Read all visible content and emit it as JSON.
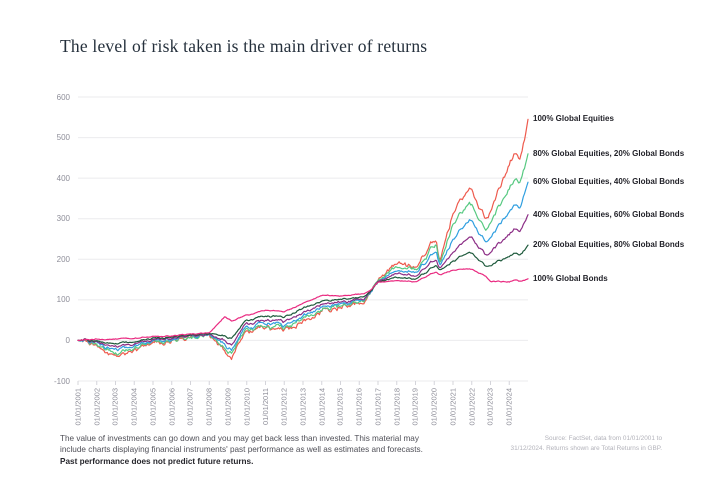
{
  "title": "The level of risk taken is the main driver of returns",
  "footer": {
    "lines": [
      "The value of investments can go down and you may get back less than invested. This material may",
      "include charts displaying financial instruments' past performance as well as estimates and forecasts."
    ],
    "bold_line": "Past performance does not predict future returns."
  },
  "source": {
    "lines": [
      "Source: FactSet, data from 01/01/2001 to",
      "31/12/2024. Returns shown are Total Returns in GBP."
    ]
  },
  "chart_data": {
    "type": "line",
    "grid": "horizontal",
    "legend_position": "right-of-line-end",
    "ylim": [
      -100,
      600
    ],
    "y_ticks": [
      600,
      500,
      400,
      300,
      200,
      100,
      0,
      -100
    ],
    "xlim_years": [
      2001,
      2025
    ],
    "x_tick_labels": [
      "01/01/2001",
      "01/01/2002",
      "01/01/2003",
      "01/01/2004",
      "01/01/2005",
      "01/01/2006",
      "01/01/2007",
      "01/01/2008",
      "01/01/2009",
      "01/01/2010",
      "01/01/2011",
      "01/01/2012",
      "01/01/2013",
      "01/01/2014",
      "01/01/2015",
      "01/01/2016",
      "01/01/2017",
      "01/01/2018",
      "01/01/2019",
      "01/01/2020",
      "01/01/2021",
      "01/01/2022",
      "01/01/2023",
      "01/01/2024"
    ],
    "x_anchor_years": [
      2001,
      2002,
      2003.2,
      2004,
      2005,
      2006,
      2007,
      2008,
      2008.85,
      2009.2,
      2010,
      2011,
      2012,
      2013,
      2014,
      2015,
      2016.2,
      2016.6,
      2017,
      2018,
      2019,
      2020.1,
      2020.3,
      2021,
      2021.9,
      2022.75,
      2023,
      2024,
      2024.35,
      2024.55,
      2025
    ],
    "series": [
      {
        "name": "100% Global Equities",
        "color": "#ee5a4d",
        "values": [
          0,
          -12,
          -42,
          -18,
          -8,
          2,
          12,
          15,
          -25,
          -42,
          22,
          32,
          22,
          50,
          75,
          85,
          88,
          110,
          150,
          195,
          185,
          255,
          195,
          315,
          385,
          300,
          320,
          430,
          470,
          445,
          545
        ]
      },
      {
        "name": "80% Global Equities, 20% Global Bonds",
        "color": "#57c981",
        "values": [
          0,
          -10,
          -33,
          -14,
          -5,
          3,
          11,
          15,
          -18,
          -32,
          26,
          36,
          28,
          55,
          79,
          88,
          92,
          112,
          148,
          186,
          178,
          240,
          190,
          288,
          345,
          272,
          292,
          372,
          400,
          385,
          460
        ]
      },
      {
        "name": "60% Global Equities, 40% Global Bonds",
        "color": "#309fe0",
        "values": [
          0,
          -7,
          -25,
          -10,
          -2,
          5,
          12,
          16,
          -10,
          -22,
          32,
          42,
          35,
          62,
          84,
          91,
          96,
          114,
          146,
          177,
          170,
          222,
          185,
          252,
          305,
          242,
          256,
          318,
          340,
          328,
          390
        ]
      },
      {
        "name": "40% Global Equities, 60% Global Bonds",
        "color": "#8c2e86",
        "values": [
          0,
          -4,
          -16,
          -6,
          1,
          7,
          13,
          16,
          0,
          -10,
          40,
          50,
          45,
          70,
          90,
          96,
          100,
          116,
          145,
          167,
          161,
          203,
          178,
          218,
          262,
          210,
          218,
          262,
          278,
          268,
          310
        ]
      },
      {
        "name": "20% Global Equities, 80% Global Bonds",
        "color": "#1e5a3c",
        "values": [
          0,
          -2,
          -8,
          -2,
          4,
          9,
          14,
          17,
          12,
          5,
          50,
          60,
          56,
          80,
          98,
          102,
          106,
          118,
          144,
          157,
          153,
          186,
          172,
          196,
          222,
          182,
          186,
          206,
          216,
          210,
          235
        ]
      },
      {
        "name": "100% Global Bonds",
        "color": "#e92a80",
        "values": [
          0,
          3,
          4,
          6,
          9,
          12,
          16,
          19,
          60,
          48,
          62,
          75,
          70,
          92,
          112,
          110,
          114,
          122,
          143,
          148,
          145,
          170,
          162,
          174,
          178,
          158,
          146,
          144,
          150,
          146,
          152
        ]
      }
    ]
  }
}
